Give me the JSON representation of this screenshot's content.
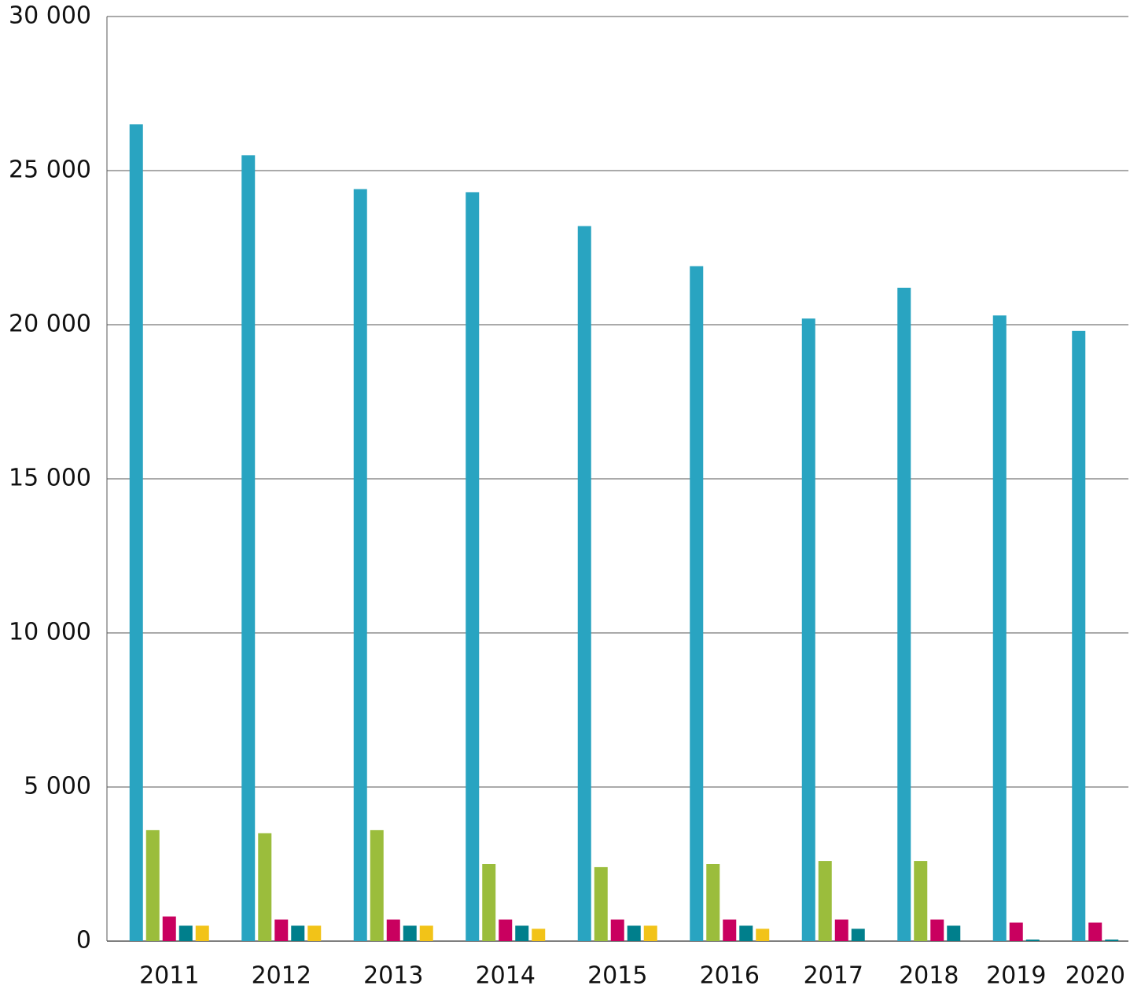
{
  "chart_data": {
    "type": "bar",
    "categories": [
      "2011",
      "2012",
      "2013",
      "2014",
      "2015",
      "2016",
      "2017",
      "2018",
      "2019",
      "2020"
    ],
    "series": [
      {
        "color": "#29a4c1",
        "values": [
          26500,
          25500,
          24400,
          24300,
          23200,
          21900,
          20200,
          21200,
          20300,
          19800
        ]
      },
      {
        "color": "#9bbd3c",
        "values": [
          3600,
          3500,
          3600,
          2500,
          2400,
          2500,
          2600,
          2600,
          null,
          null
        ]
      },
      {
        "color": "#c9005f",
        "values": [
          800,
          700,
          700,
          700,
          700,
          700,
          700,
          700,
          600,
          600
        ]
      },
      {
        "color": "#007f8c",
        "values": [
          500,
          500,
          500,
          500,
          500,
          500,
          400,
          500,
          50,
          50
        ]
      },
      {
        "color": "#f2c318",
        "values": [
          500,
          500,
          500,
          400,
          500,
          400,
          null,
          null,
          null,
          null
        ]
      }
    ],
    "ylim": [
      0,
      30000
    ],
    "yticks": [
      0,
      {
        "value": 5000,
        "label": "5 000"
      },
      {
        "value": 10000,
        "label": "10 000"
      },
      {
        "value": 15000,
        "label": "15 000"
      },
      {
        "value": 20000,
        "label": "20 000"
      },
      {
        "value": 25000,
        "label": "25 000"
      },
      {
        "value": 30000,
        "label": "30 000"
      }
    ],
    "grid": true
  }
}
